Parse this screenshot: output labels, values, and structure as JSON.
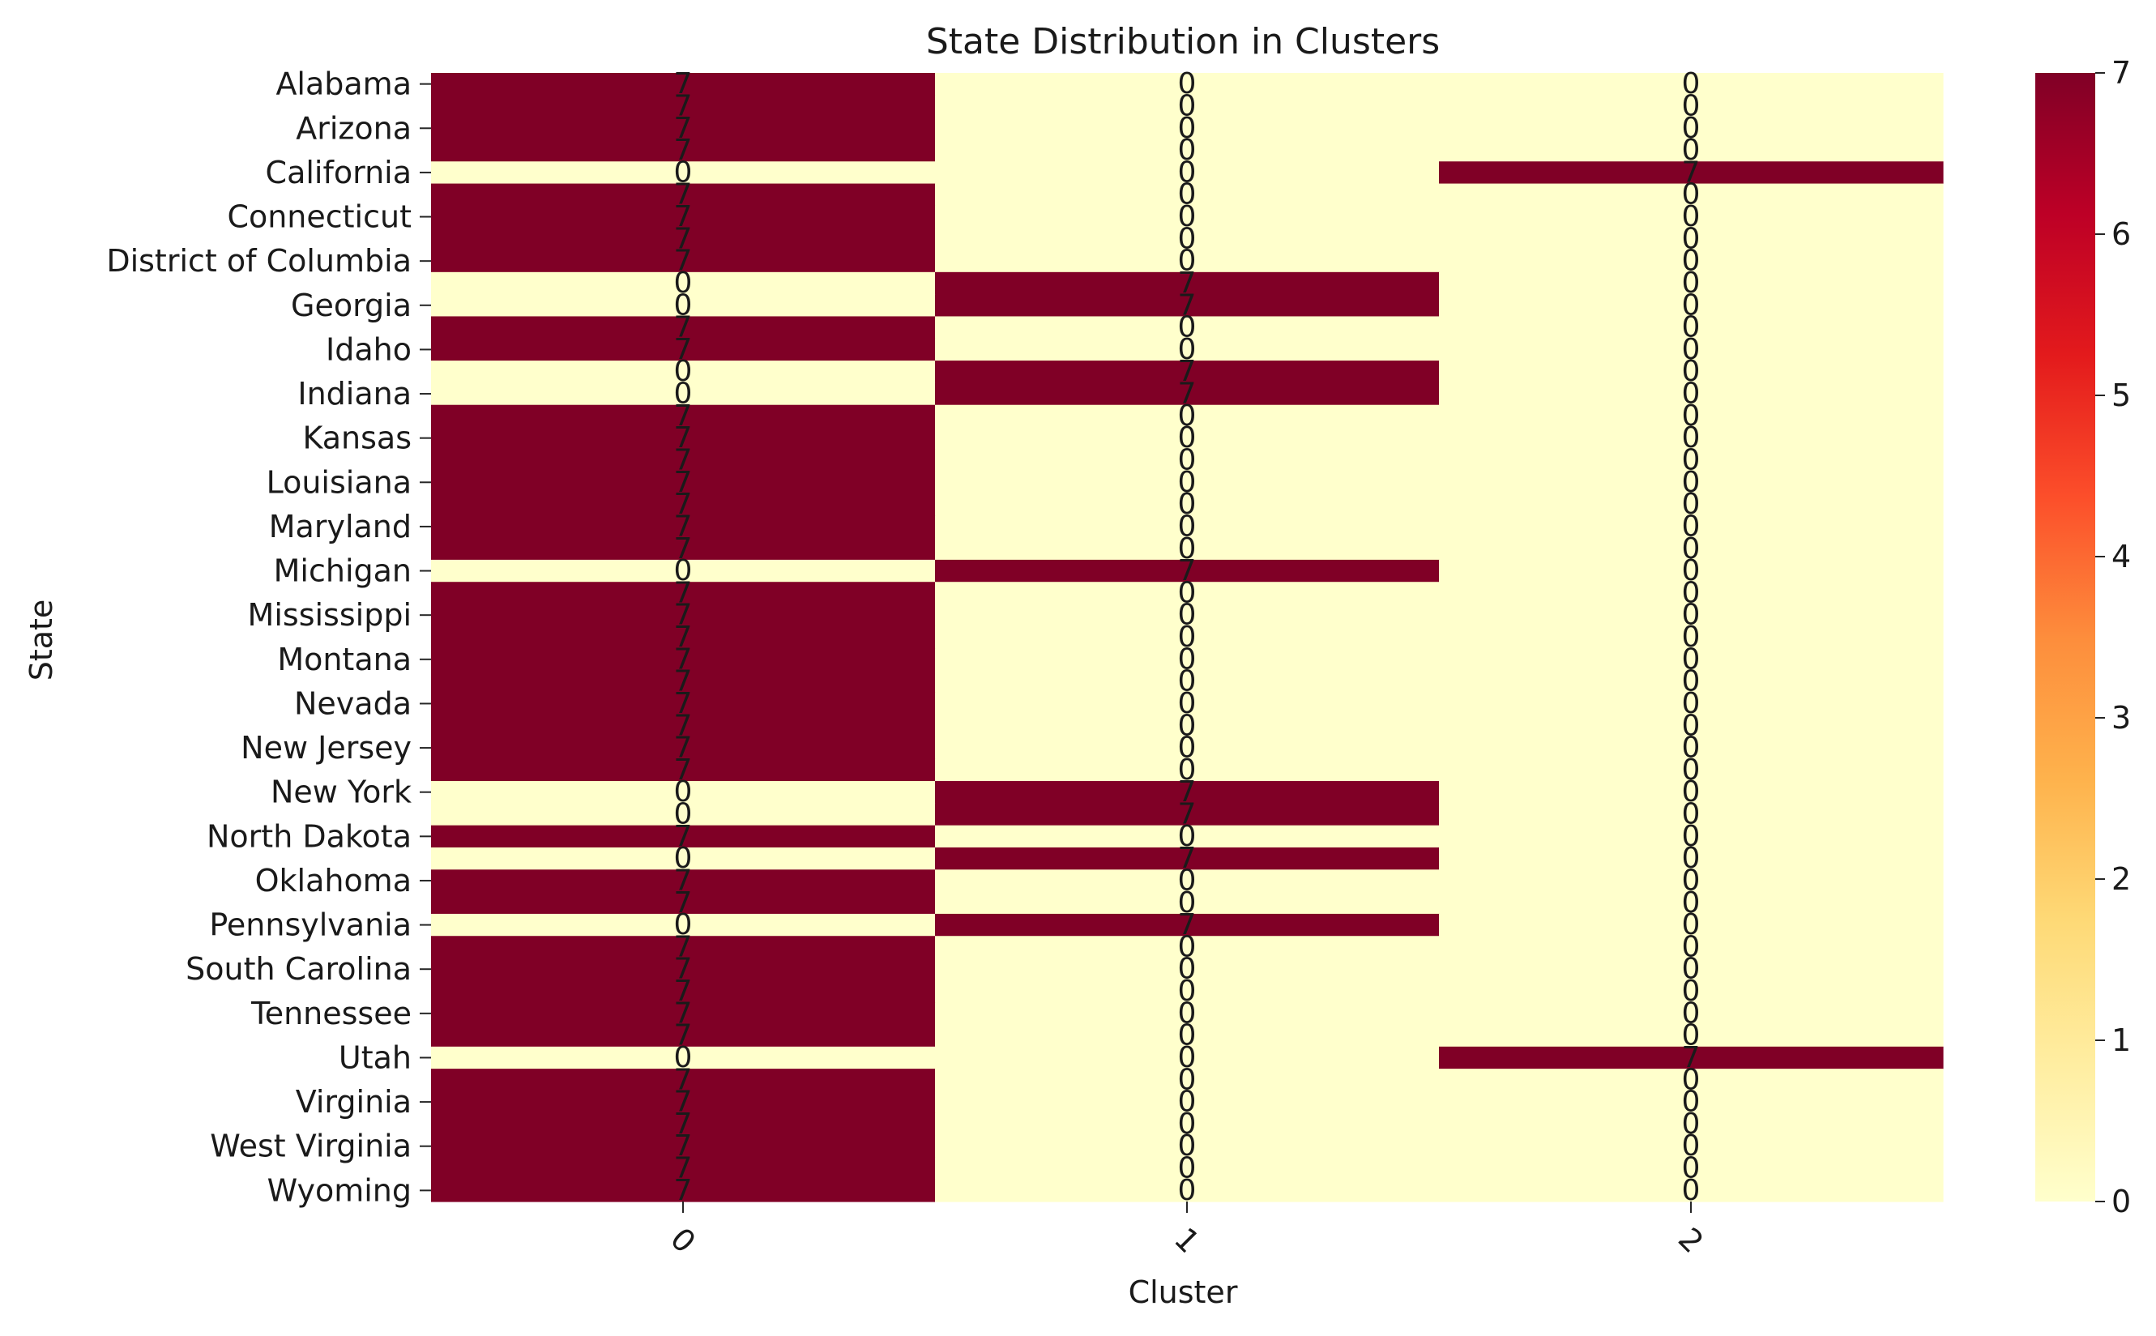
{
  "chart_data": {
    "type": "heatmap",
    "title": "State Distribution in Clusters",
    "xlabel": "Cluster",
    "ylabel": "State",
    "x_categories": [
      "0",
      "1",
      "2"
    ],
    "y_tick_labels": [
      "Alabama",
      "Arizona",
      "California",
      "Connecticut",
      "District of Columbia",
      "Georgia",
      "Idaho",
      "Indiana",
      "Kansas",
      "Louisiana",
      "Maryland",
      "Michigan",
      "Mississippi",
      "Montana",
      "Nevada",
      "New Jersey",
      "New York",
      "North Dakota",
      "Oklahoma",
      "Pennsylvania",
      "South Carolina",
      "Tennessee",
      "Utah",
      "Virginia",
      "West Virginia",
      "Wyoming"
    ],
    "row_count": 51,
    "labeled_every": 2,
    "values": [
      [
        7,
        0,
        0
      ],
      [
        7,
        0,
        0
      ],
      [
        7,
        0,
        0
      ],
      [
        7,
        0,
        0
      ],
      [
        0,
        0,
        7
      ],
      [
        7,
        0,
        0
      ],
      [
        7,
        0,
        0
      ],
      [
        7,
        0,
        0
      ],
      [
        7,
        0,
        0
      ],
      [
        0,
        7,
        0
      ],
      [
        0,
        7,
        0
      ],
      [
        7,
        0,
        0
      ],
      [
        7,
        0,
        0
      ],
      [
        0,
        7,
        0
      ],
      [
        0,
        7,
        0
      ],
      [
        7,
        0,
        0
      ],
      [
        7,
        0,
        0
      ],
      [
        7,
        0,
        0
      ],
      [
        7,
        0,
        0
      ],
      [
        7,
        0,
        0
      ],
      [
        7,
        0,
        0
      ],
      [
        7,
        0,
        0
      ],
      [
        0,
        7,
        0
      ],
      [
        7,
        0,
        0
      ],
      [
        7,
        0,
        0
      ],
      [
        7,
        0,
        0
      ],
      [
        7,
        0,
        0
      ],
      [
        7,
        0,
        0
      ],
      [
        7,
        0,
        0
      ],
      [
        7,
        0,
        0
      ],
      [
        7,
        0,
        0
      ],
      [
        7,
        0,
        0
      ],
      [
        0,
        7,
        0
      ],
      [
        0,
        7,
        0
      ],
      [
        7,
        0,
        0
      ],
      [
        0,
        7,
        0
      ],
      [
        7,
        0,
        0
      ],
      [
        7,
        0,
        0
      ],
      [
        0,
        7,
        0
      ],
      [
        7,
        0,
        0
      ],
      [
        7,
        0,
        0
      ],
      [
        7,
        0,
        0
      ],
      [
        7,
        0,
        0
      ],
      [
        7,
        0,
        0
      ],
      [
        0,
        0,
        7
      ],
      [
        7,
        0,
        0
      ],
      [
        7,
        0,
        0
      ],
      [
        7,
        0,
        0
      ],
      [
        7,
        0,
        0
      ],
      [
        7,
        0,
        0
      ],
      [
        7,
        0,
        0
      ]
    ],
    "annotations": true,
    "colorbar": {
      "min": 0,
      "max": 7,
      "ticks": [
        "0",
        "1",
        "2",
        "3",
        "4",
        "5",
        "6",
        "7"
      ]
    },
    "colormap": "YlOrRd",
    "colors": [
      "#ffffcc",
      "#ffeda0",
      "#fed976",
      "#feb24c",
      "#fd8d3c",
      "#fc4e2a",
      "#e31a1c",
      "#bd0026",
      "#800026"
    ],
    "x_tick_rotation": 45
  }
}
